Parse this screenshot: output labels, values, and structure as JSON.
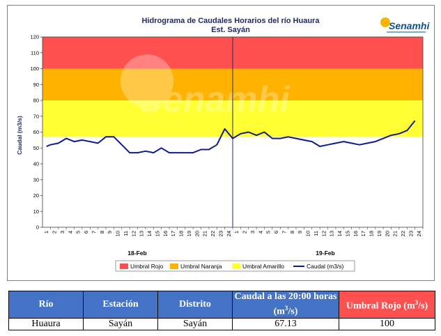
{
  "chart_data": {
    "type": "line",
    "title": "Hidrograma de Caudales Horarios del río Huaura",
    "subtitle": "Est. Sayán",
    "ylabel": "Caudal  (m3/s)",
    "ylim": [
      0,
      120
    ],
    "yticks": [
      0,
      10,
      20,
      30,
      40,
      50,
      60,
      70,
      80,
      90,
      100,
      110,
      120
    ],
    "xtick_labels": [
      "1",
      "2",
      "3",
      "4",
      "5",
      "6",
      "7",
      "8",
      "9",
      "10",
      "11",
      "12",
      "13",
      "14",
      "15",
      "16",
      "17",
      "18",
      "19",
      "20",
      "21",
      "22",
      "23",
      "24",
      "1",
      "2",
      "3",
      "4",
      "5",
      "6",
      "7",
      "8",
      "9",
      "10",
      "11",
      "12",
      "13",
      "14",
      "15",
      "16",
      "17",
      "18",
      "19",
      "20",
      "21",
      "22",
      "23",
      "24"
    ],
    "date_labels": [
      "18-Feb",
      "19-Feb"
    ],
    "thresholds": [
      {
        "name": "Umbral Rojo",
        "from": 100,
        "to": 120,
        "color": "#ff5050"
      },
      {
        "name": "Umbral Naranja",
        "from": 80,
        "to": 100,
        "color": "#ffb300"
      },
      {
        "name": "Umbral Amarillo",
        "from": 57,
        "to": 80,
        "color": "#ffff33"
      }
    ],
    "series": [
      {
        "name": "Caudal (m3/s)",
        "color": "#0f1a8c",
        "x": [
          0.5,
          1,
          2,
          3,
          4,
          5,
          6,
          7,
          8,
          9,
          10,
          11,
          12,
          13,
          14,
          15,
          16,
          17,
          18,
          19,
          20,
          21,
          22,
          23,
          24,
          25,
          26,
          27,
          28,
          29,
          30,
          31,
          32,
          33,
          34,
          35,
          36,
          37,
          38,
          39,
          40,
          41,
          42,
          43,
          44
        ],
        "values": [
          51,
          52,
          53,
          56,
          54,
          55,
          54,
          53,
          57,
          57,
          52,
          47,
          47,
          48,
          47,
          50,
          47,
          47,
          47,
          47,
          49,
          49,
          52,
          62,
          56,
          59,
          60,
          58,
          60,
          56,
          56,
          57,
          56,
          55,
          54,
          51,
          52,
          53,
          54,
          53,
          52,
          53,
          54,
          56,
          58
        ]
      },
      {
        "name": "Caudal (m3/s) tail",
        "color": "#0f1a8c",
        "x": [
          44,
          45,
          46,
          47
        ],
        "values": [
          58,
          59,
          61,
          67.13
        ]
      }
    ],
    "legend": [
      "Umbral Rojo",
      "Umbral Naranja",
      "Umbral Amarillo",
      "Caudal (m3/s)"
    ],
    "legend_position": "bottom",
    "watermark": "Senamhi",
    "logo_text": "Senamhi"
  },
  "table": {
    "headers": [
      "Río",
      "Estación",
      "Distrito",
      "Caudal a las 20:00 horas (m3/s)",
      "Umbral Rojo (m3/s)"
    ],
    "rows": [
      [
        "Huaura",
        "Sayán",
        "Sayán",
        "67.13",
        "100"
      ]
    ]
  }
}
